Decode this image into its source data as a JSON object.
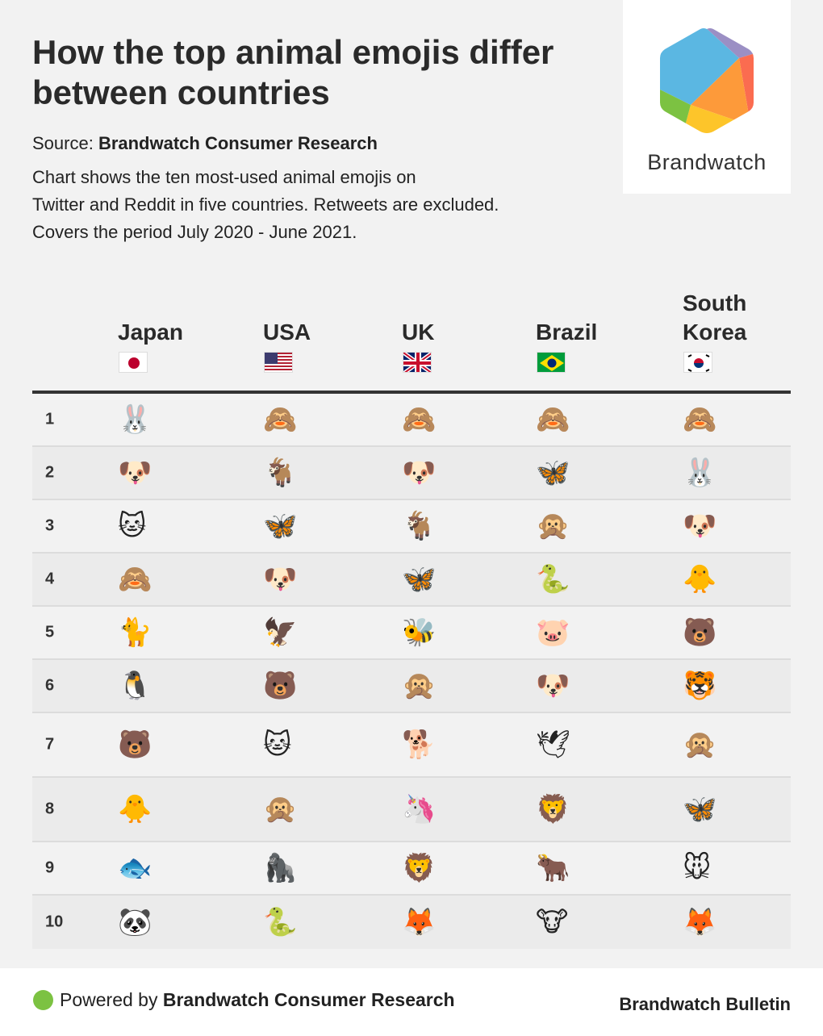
{
  "header": {
    "title": "How the top animal emojis differ between countries",
    "source_label": "Source: ",
    "source_name": "Brandwatch Consumer Research",
    "description_lines": [
      "Chart shows the ten most-used animal emojis on",
      "Twitter and Reddit in five countries. Retweets are excluded.",
      "Covers the period July 2020 - June 2021."
    ]
  },
  "logo": {
    "text": "Brandwatch",
    "colors": [
      "#5bb7e2",
      "#9b8fc4",
      "#fb6c50",
      "#fd9a3a",
      "#fdc52a",
      "#7cc242"
    ]
  },
  "footer": {
    "powered_prefix": "Powered by ",
    "powered_name": "Brandwatch Consumer Research",
    "bulletin": "Brandwatch Bulletin",
    "dot_color": "#7cc242"
  },
  "chart_data": {
    "type": "table",
    "columns": [
      {
        "country": "Japan",
        "flag": "japan-flag"
      },
      {
        "country": "USA",
        "flag": "usa-flag"
      },
      {
        "country": "UK",
        "flag": "uk-flag"
      },
      {
        "country": "Brazil",
        "flag": "brazil-flag"
      },
      {
        "country": "South Korea",
        "flag": "south-korea-flag"
      }
    ],
    "rows": [
      {
        "rank": "1",
        "cells": [
          "🐰",
          "🙈",
          "🙈",
          "🙈",
          "🙈"
        ]
      },
      {
        "rank": "2",
        "cells": [
          "🐶",
          "🐐",
          "🐶",
          "🦋",
          "🐰"
        ]
      },
      {
        "rank": "3",
        "cells": [
          "🐱",
          "🦋",
          "🐐",
          "🙊",
          "🐶"
        ]
      },
      {
        "rank": "4",
        "cells": [
          "🙈",
          "🐶",
          "🦋",
          "🐍",
          "🐥"
        ]
      },
      {
        "rank": "5",
        "cells": [
          "🐈",
          "🦅",
          "🐝",
          "🐷",
          "🐻"
        ]
      },
      {
        "rank": "6",
        "cells": [
          "🐧",
          "🐻",
          "🙊",
          "🐶",
          "🐯"
        ]
      },
      {
        "rank": "7",
        "cells": [
          "🐻",
          "🐱",
          "🐕",
          "🕊",
          "🙊"
        ]
      },
      {
        "rank": "8",
        "cells": [
          "🐥",
          "🙊",
          "🦄",
          "🦁",
          "🦋"
        ]
      },
      {
        "rank": "9",
        "cells": [
          "🐟",
          "🦍",
          "🦁",
          "🐂",
          "🐭"
        ]
      },
      {
        "rank": "10",
        "cells": [
          "🐼",
          "🐍",
          "🦊",
          "🐮",
          "🦊"
        ]
      }
    ]
  }
}
